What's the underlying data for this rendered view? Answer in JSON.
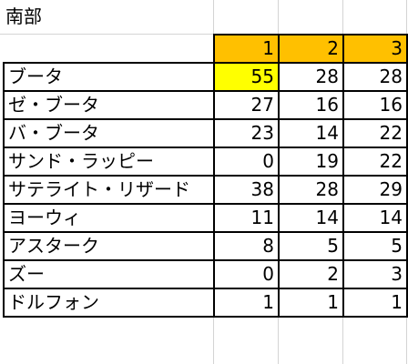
{
  "sheet": {
    "title": "南部",
    "colors": {
      "header_fill": "#ffc000",
      "highlight_fill": "#ffff00",
      "gridline": "#d4d4d4",
      "border": "#000000"
    },
    "columns": [
      "1",
      "2",
      "3"
    ],
    "rows": [
      {
        "name": "ブータ",
        "values": [
          "55",
          "28",
          "28"
        ],
        "highlight": [
          true,
          false,
          false
        ]
      },
      {
        "name": "ゼ・ブータ",
        "values": [
          "27",
          "16",
          "16"
        ],
        "highlight": [
          false,
          false,
          false
        ]
      },
      {
        "name": "バ・ブータ",
        "values": [
          "23",
          "14",
          "22"
        ],
        "highlight": [
          false,
          false,
          false
        ]
      },
      {
        "name": "サンド・ラッピー",
        "values": [
          "0",
          "19",
          "22"
        ],
        "highlight": [
          false,
          false,
          false
        ]
      },
      {
        "name": "サテライト・リザード",
        "values": [
          "38",
          "28",
          "29"
        ],
        "highlight": [
          false,
          false,
          false
        ]
      },
      {
        "name": "ヨーウィ",
        "values": [
          "11",
          "14",
          "14"
        ],
        "highlight": [
          false,
          false,
          false
        ]
      },
      {
        "name": "アスターク",
        "values": [
          "8",
          "5",
          "5"
        ],
        "highlight": [
          false,
          false,
          false
        ]
      },
      {
        "name": "ズー",
        "values": [
          "0",
          "2",
          "3"
        ],
        "highlight": [
          false,
          false,
          false
        ]
      },
      {
        "name": "ドルフォン",
        "values": [
          "1",
          "1",
          "1"
        ],
        "highlight": [
          false,
          false,
          false
        ]
      }
    ]
  }
}
